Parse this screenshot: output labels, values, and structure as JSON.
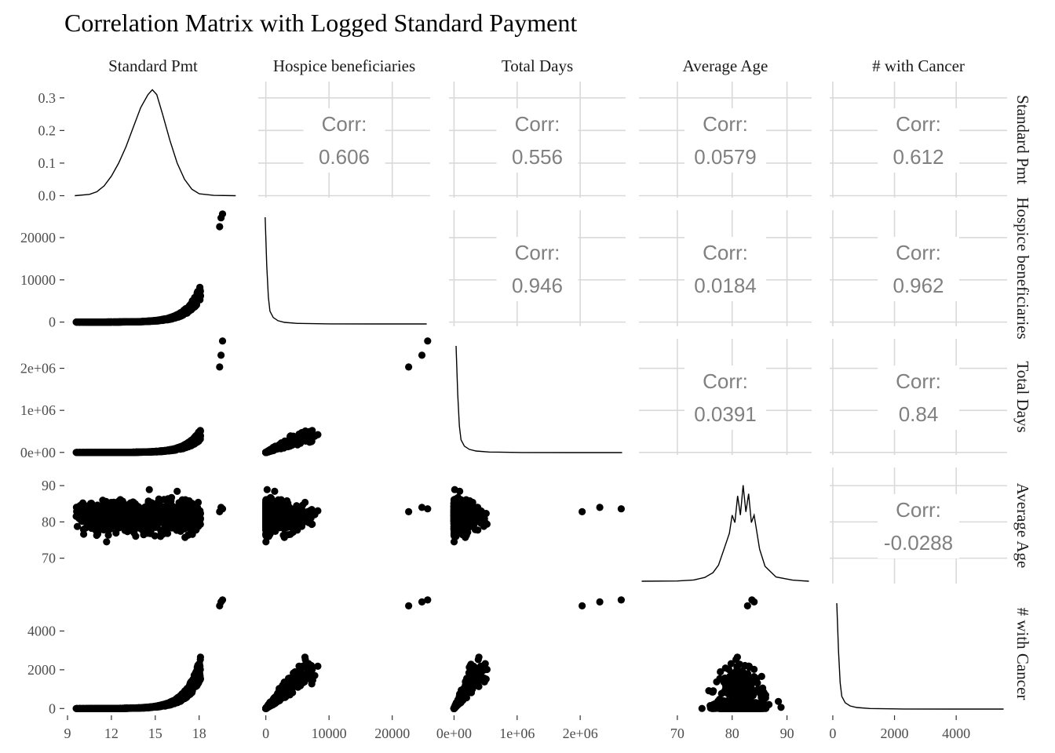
{
  "chart_data": {
    "type": "scatter-matrix",
    "title": "Correlation Matrix with Logged Standard Payment",
    "variables": [
      "Standard Pmt",
      "Hospice beneficiaries",
      "Total Days",
      "Average Age",
      "# with Cancer"
    ],
    "corr_label": "Corr:",
    "correlations": [
      {
        "row": 0,
        "col": 1,
        "value": "0.606"
      },
      {
        "row": 0,
        "col": 2,
        "value": "0.556"
      },
      {
        "row": 0,
        "col": 3,
        "value": "0.0579"
      },
      {
        "row": 0,
        "col": 4,
        "value": "0.612"
      },
      {
        "row": 1,
        "col": 2,
        "value": "0.946"
      },
      {
        "row": 1,
        "col": 3,
        "value": "0.0184"
      },
      {
        "row": 1,
        "col": 4,
        "value": "0.962"
      },
      {
        "row": 2,
        "col": 3,
        "value": "0.0391"
      },
      {
        "row": 2,
        "col": 4,
        "value": "0.84"
      },
      {
        "row": 3,
        "col": 4,
        "value": "-0.0288"
      }
    ],
    "x_axes": [
      {
        "range": [
          9,
          20.7
        ],
        "ticks": [
          9,
          12,
          15,
          18
        ],
        "labels": [
          "9",
          "12",
          "15",
          "18"
        ]
      },
      {
        "range": [
          -1200,
          26000
        ],
        "ticks": [
          0,
          10000,
          20000
        ],
        "labels": [
          "0",
          "10000",
          "20000"
        ]
      },
      {
        "range": [
          -80000,
          2720000
        ],
        "ticks": [
          0,
          1000000,
          2000000
        ],
        "labels": [
          "0e+00",
          "1e+06",
          "2e+06"
        ]
      },
      {
        "range": [
          63,
          94.5
        ],
        "ticks": [
          70,
          80,
          90
        ],
        "labels": [
          "70",
          "80",
          "90"
        ]
      },
      {
        "range": [
          -100,
          5650
        ],
        "ticks": [
          0,
          2000,
          4000
        ],
        "labels": [
          "0",
          "2000",
          "4000"
        ]
      }
    ],
    "y_axes": [
      {
        "range": [
          -0.006,
          0.35
        ],
        "ticks": [
          0.0,
          0.1,
          0.2,
          0.3
        ],
        "labels": [
          "0.0",
          "0.1",
          "0.2",
          "0.3"
        ]
      },
      {
        "range": [
          -1000,
          26500
        ],
        "ticks": [
          0,
          10000,
          20000
        ],
        "labels": [
          "0",
          "10000",
          "20000"
        ]
      },
      {
        "range": [
          -60000,
          2700000
        ],
        "ticks": [
          0,
          1000000,
          2000000
        ],
        "labels": [
          "0e+00",
          "1e+06",
          "2e+06"
        ]
      },
      {
        "range": [
          63,
          95
        ],
        "ticks": [
          70,
          80,
          90
        ],
        "labels": [
          "70",
          "80",
          "90"
        ]
      },
      {
        "range": [
          -150,
          5800
        ],
        "ticks": [
          0,
          2000,
          4000
        ],
        "labels": [
          "0",
          "2000",
          "4000"
        ]
      }
    ],
    "density_standard_pmt": {
      "x": [
        9.5,
        10.5,
        11.0,
        11.5,
        12.0,
        12.5,
        13.0,
        13.5,
        14.0,
        14.5,
        14.8,
        15.1,
        15.5,
        16.0,
        16.5,
        17.0,
        17.5,
        18.0,
        19.0,
        20.5
      ],
      "y": [
        0.0,
        0.004,
        0.012,
        0.03,
        0.06,
        0.1,
        0.15,
        0.21,
        0.27,
        0.31,
        0.325,
        0.31,
        0.25,
        0.17,
        0.1,
        0.05,
        0.02,
        0.006,
        0.001,
        0.0
      ]
    },
    "density_skewed": {
      "x": [
        0.0,
        0.01,
        0.02,
        0.03,
        0.05,
        0.08,
        0.12,
        0.2,
        0.4,
        0.7,
        1.0
      ],
      "y": [
        1.0,
        0.55,
        0.25,
        0.12,
        0.06,
        0.03,
        0.015,
        0.005,
        0.001,
        0.0,
        0.0
      ]
    },
    "density_average_age": {
      "x": [
        63.5,
        70,
        73,
        75,
        76.5,
        77.5,
        78.5,
        79.5,
        80.0,
        80.5,
        81.0,
        81.5,
        82.0,
        82.5,
        83.0,
        83.5,
        84.0,
        85,
        86,
        88,
        91,
        94
      ],
      "y": [
        0.0,
        0.002,
        0.012,
        0.035,
        0.08,
        0.15,
        0.3,
        0.45,
        0.62,
        0.55,
        0.8,
        0.62,
        0.9,
        0.65,
        0.82,
        0.55,
        0.62,
        0.3,
        0.14,
        0.04,
        0.01,
        0.0
      ]
    },
    "outliers": [
      {
        "pmt": 19.6,
        "hospice": 25600,
        "days": 2650000,
        "age": 83.6,
        "cancer": 5600
      },
      {
        "pmt": 19.5,
        "hospice": 24700,
        "days": 2310000,
        "age": 84.0,
        "cancer": 5500
      },
      {
        "pmt": 19.4,
        "hospice": 22600,
        "days": 2030000,
        "age": 82.8,
        "cancer": 5300
      }
    ]
  }
}
